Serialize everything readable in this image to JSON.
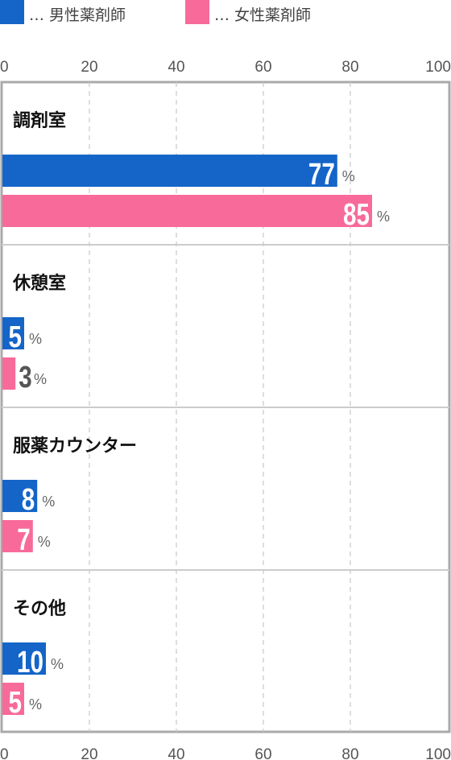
{
  "legend": [
    {
      "text": "… 男性薬剤師",
      "color": "#1565C8"
    },
    {
      "text": "… 女性薬剤師",
      "color": "#F76A9A"
    }
  ],
  "chart_data": {
    "type": "bar",
    "orientation": "horizontal",
    "categories": [
      "調剤室",
      "休憩室",
      "服薬カウンター",
      "その他"
    ],
    "series": [
      {
        "name": "男性薬剤師",
        "color": "#1565C8",
        "values": [
          77,
          5,
          8,
          10
        ]
      },
      {
        "name": "女性薬剤師",
        "color": "#F76A9A",
        "values": [
          85,
          3,
          7,
          5
        ]
      }
    ],
    "xlim": [
      0,
      100
    ],
    "ticks": [
      "0",
      "20",
      "40",
      "60",
      "80",
      "100"
    ],
    "tick_values": [
      0,
      20,
      40,
      60,
      80,
      100
    ],
    "unit": "%",
    "grid": true,
    "legend_position": "top-left"
  }
}
